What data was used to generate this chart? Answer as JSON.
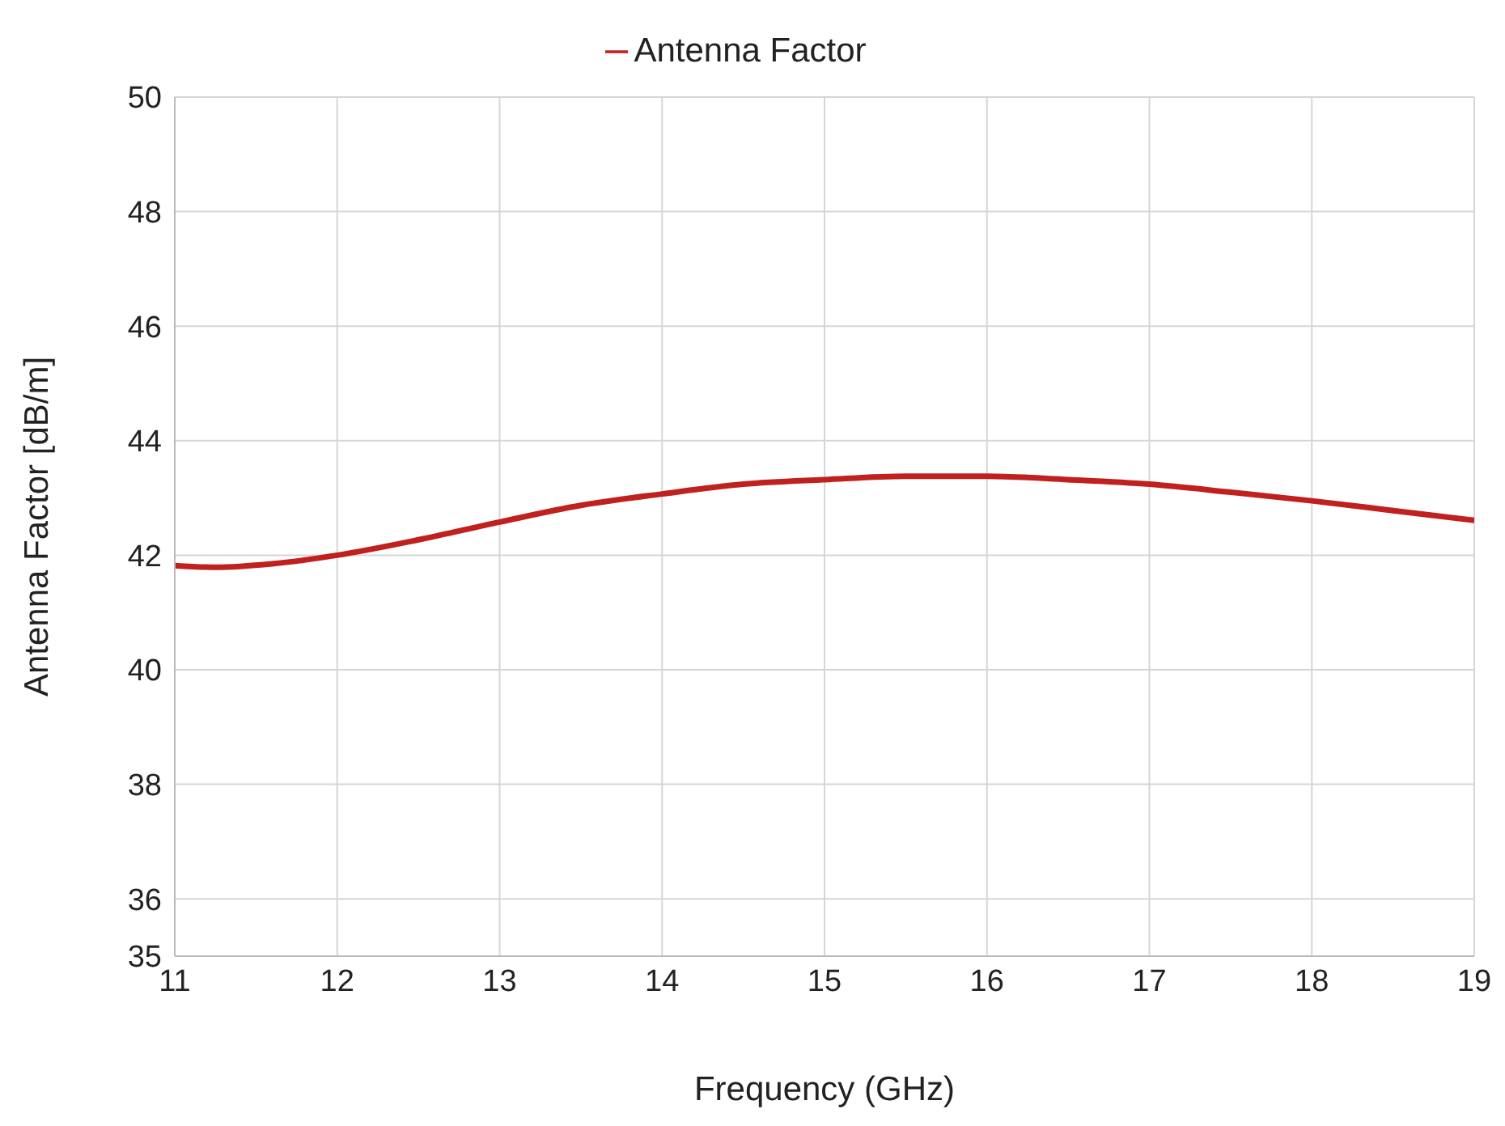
{
  "chart_data": {
    "type": "line",
    "xlabel": "Frequency (GHz)",
    "ylabel": "Antenna Factor [dB/m]",
    "x": [
      11,
      11.25,
      11.6,
      12,
      12.5,
      13,
      13.5,
      14,
      14.5,
      15,
      15.5,
      16,
      16.5,
      17,
      17.5,
      18,
      18.5,
      19
    ],
    "series": [
      {
        "name": "Antenna Factor",
        "color": "#c0201e",
        "values": [
          41.82,
          41.79,
          41.85,
          42.0,
          42.27,
          42.58,
          42.87,
          43.07,
          43.24,
          43.32,
          43.38,
          43.38,
          43.32,
          43.24,
          43.1,
          42.95,
          42.78,
          42.61
        ]
      }
    ],
    "xlim": [
      11,
      19
    ],
    "xticks": [
      11,
      12,
      13,
      14,
      15,
      16,
      17,
      18,
      19
    ],
    "ylim": [
      35,
      50
    ],
    "yticks": [
      35,
      36,
      38,
      40,
      42,
      44,
      46,
      48,
      50
    ],
    "grid": true,
    "legend": "top",
    "marker": "none",
    "line_style": "solid"
  }
}
